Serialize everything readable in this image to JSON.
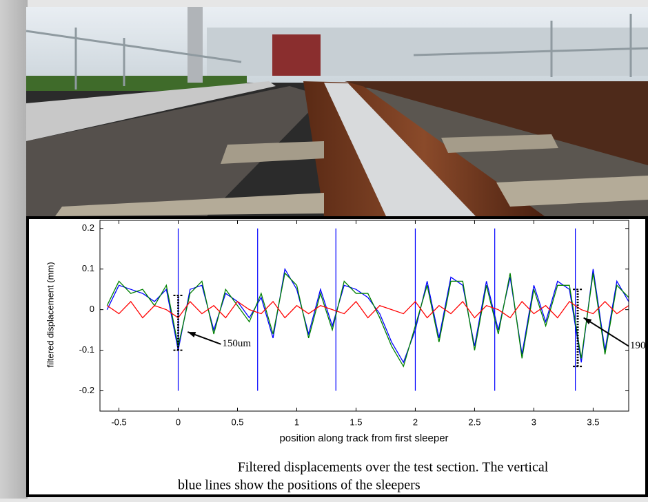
{
  "chart_data": {
    "type": "line",
    "x_label": "position along track from first sleeper",
    "y_label": "filtered displacement (mm)",
    "xlim": [
      -0.66,
      3.8
    ],
    "ylim": [
      -0.25,
      0.22
    ],
    "xticks": [
      -0.5,
      0,
      0.5,
      1,
      1.5,
      2,
      2.5,
      3,
      3.5
    ],
    "yticks": [
      -0.2,
      -0.1,
      0,
      0.1,
      0.2
    ],
    "x": [
      -0.6,
      -0.5,
      -0.4,
      -0.3,
      -0.2,
      -0.1,
      0,
      0.1,
      0.2,
      0.3,
      0.4,
      0.5,
      0.6,
      0.7,
      0.8,
      0.9,
      1,
      1.1,
      1.2,
      1.3,
      1.4,
      1.5,
      1.6,
      1.7,
      1.8,
      1.9,
      2,
      2.1,
      2.2,
      2.3,
      2.4,
      2.5,
      2.6,
      2.7,
      2.8,
      2.9,
      3,
      3.1,
      3.2,
      3.3,
      3.4,
      3.5,
      3.6,
      3.7,
      3.8
    ],
    "series": [
      {
        "color": "#0000ff",
        "values": [
          0.0,
          0.06,
          0.05,
          0.04,
          0.02,
          0.05,
          -0.1,
          0.05,
          0.06,
          -0.05,
          0.04,
          0.02,
          -0.02,
          0.03,
          -0.07,
          0.1,
          0.05,
          -0.06,
          0.05,
          -0.04,
          0.06,
          0.05,
          0.03,
          -0.01,
          -0.08,
          -0.13,
          -0.05,
          0.07,
          -0.07,
          0.08,
          0.06,
          -0.09,
          0.07,
          -0.05,
          0.08,
          -0.11,
          0.06,
          -0.03,
          0.07,
          0.05,
          -0.13,
          0.1,
          -0.1,
          0.07,
          0.02
        ]
      },
      {
        "color": "#008000",
        "values": [
          0.01,
          0.07,
          0.04,
          0.05,
          0.01,
          0.06,
          -0.09,
          0.04,
          0.07,
          -0.06,
          0.05,
          0.01,
          -0.03,
          0.04,
          -0.06,
          0.09,
          0.06,
          -0.07,
          0.04,
          -0.05,
          0.07,
          0.04,
          0.04,
          -0.02,
          -0.09,
          -0.14,
          -0.04,
          0.06,
          -0.08,
          0.07,
          0.07,
          -0.1,
          0.06,
          -0.06,
          0.09,
          -0.12,
          0.05,
          -0.04,
          0.06,
          0.06,
          -0.12,
          0.09,
          -0.11,
          0.06,
          0.03
        ]
      },
      {
        "color": "#ff0000",
        "values": [
          0.01,
          -0.01,
          0.02,
          -0.02,
          0.01,
          0.0,
          -0.02,
          0.02,
          -0.01,
          0.01,
          -0.02,
          0.02,
          0.0,
          -0.01,
          0.02,
          -0.02,
          0.01,
          -0.01,
          0.01,
          0.0,
          -0.01,
          0.02,
          -0.02,
          0.01,
          0.0,
          -0.01,
          0.02,
          -0.02,
          0.01,
          -0.01,
          0.02,
          -0.02,
          0.01,
          0.0,
          -0.02,
          0.02,
          -0.01,
          0.01,
          -0.02,
          0.02,
          0.0,
          -0.01,
          0.02,
          -0.01,
          0.01
        ]
      }
    ],
    "sleepers": {
      "color": "#0000ff",
      "x": [
        0,
        0.67,
        1.33,
        2,
        2.67,
        3.35
      ],
      "ymin": -0.2,
      "ymax": 0.2
    },
    "annotations": [
      {
        "text": "150um",
        "x": 0.36,
        "y": -0.085,
        "arrow_x": 0.08,
        "arrow_y": -0.055,
        "bracket_x": 0,
        "bracket_ymin": -0.1,
        "bracket_ymax": 0.035
      },
      {
        "text": "190",
        "x": 3.8,
        "y": -0.09,
        "arrow_x": 3.42,
        "arrow_y": -0.02,
        "bracket_x": 3.37,
        "bracket_ymin": -0.14,
        "bracket_ymax": 0.05
      }
    ]
  },
  "caption": {
    "lines": [
      "Filtered displacements over the test section.  The vertical",
      "blue lines show the positions of the sleepers"
    ]
  }
}
